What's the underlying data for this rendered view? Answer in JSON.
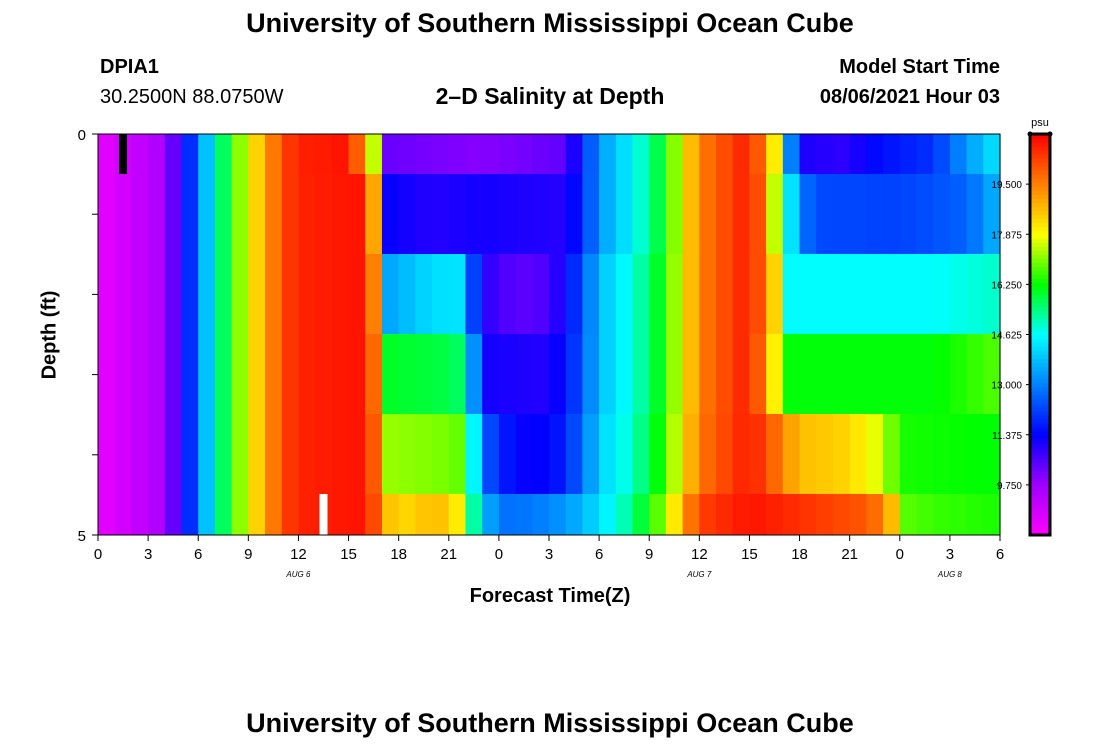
{
  "header": {
    "title": "University of Southern Mississippi Ocean Cube",
    "station_id": "DPIA1",
    "station_coords": "30.2500N  88.0750W",
    "plot_title": "2–D Salinity at Depth",
    "model_start_label": "Model Start Time",
    "model_start_value": "08/06/2021 Hour 03"
  },
  "footer": {
    "title": "University of Southern Mississippi Ocean Cube"
  },
  "chart_data": {
    "type": "heatmap",
    "title": "2–D Salinity at Depth",
    "xlabel": "Forecast Time(Z)",
    "ylabel": "Depth (ft)",
    "x_range_hours": [
      0,
      54
    ],
    "x_step_hours": 1,
    "y_range": [
      0,
      5
    ],
    "x_tick_labels": [
      "0",
      "3",
      "6",
      "9",
      "12",
      "15",
      "18",
      "21",
      "0",
      "3",
      "6",
      "9",
      "12",
      "15",
      "18",
      "21",
      "0",
      "3",
      "6"
    ],
    "y_tick_labels": [
      "0",
      "5"
    ],
    "day_labels": [
      {
        "label": "AUG 6",
        "hour": 12
      },
      {
        "label": "AUG 7",
        "hour": 36
      },
      {
        "label": "AUG 8",
        "hour": 51
      }
    ],
    "colorbar": {
      "units": "psu",
      "min": 8.125,
      "max": 21.125,
      "tick_labels": [
        "9.750",
        "11.375",
        "13.000",
        "14.625",
        "16.250",
        "17.875",
        "19.500"
      ],
      "tick_values": [
        9.75,
        11.375,
        13.0,
        14.625,
        16.25,
        17.875,
        19.5
      ]
    },
    "depth_layers": [
      "0-0.5 ft",
      "0.5-1.5 ft",
      "1.5-2.5 ft",
      "2.5-3.5 ft",
      "3.5-4.5 ft",
      "4.5-5 ft"
    ],
    "key_points": [
      [
        [
          0,
          8.5
        ],
        [
          4,
          9.6
        ],
        [
          5,
          11.1
        ],
        [
          6,
          12.8
        ],
        [
          7,
          14.9
        ],
        [
          8,
          16.4
        ],
        [
          9,
          17.9
        ],
        [
          10,
          19.0
        ],
        [
          11,
          20.2
        ],
        [
          12,
          20.7
        ],
        [
          15,
          20.9
        ],
        [
          16,
          19.0
        ],
        [
          17,
          16.0
        ],
        [
          17.5,
          10.3
        ],
        [
          23,
          10.0
        ],
        [
          28,
          10.4
        ],
        [
          29,
          11.8
        ],
        [
          30,
          13.3
        ],
        [
          32,
          14.5
        ],
        [
          34,
          16.2
        ],
        [
          35,
          18.0
        ],
        [
          36,
          19.5
        ],
        [
          39,
          20.8
        ],
        [
          40,
          19.2
        ],
        [
          41,
          17.0
        ],
        [
          41.5,
          13.0
        ],
        [
          42,
          11.1
        ],
        [
          45,
          10.9
        ],
        [
          46,
          11.4
        ],
        [
          50,
          12.0
        ],
        [
          52,
          13.3
        ],
        [
          54,
          14.4
        ]
      ],
      [
        [
          0,
          8.5
        ],
        [
          4,
          9.6
        ],
        [
          5,
          11.1
        ],
        [
          6,
          12.8
        ],
        [
          7,
          14.9
        ],
        [
          8,
          16.4
        ],
        [
          9,
          17.9
        ],
        [
          10,
          19.0
        ],
        [
          11,
          20.2
        ],
        [
          12,
          20.7
        ],
        [
          16,
          20.9
        ],
        [
          16.5,
          19.0
        ],
        [
          17,
          16.5
        ],
        [
          17.5,
          11.3
        ],
        [
          20,
          11.0
        ],
        [
          23,
          11.2
        ],
        [
          25,
          11.1
        ],
        [
          28,
          11.0
        ],
        [
          29,
          11.9
        ],
        [
          30,
          13.3
        ],
        [
          32,
          14.5
        ],
        [
          34,
          16.2
        ],
        [
          35,
          18.0
        ],
        [
          36,
          19.5
        ],
        [
          39,
          20.8
        ],
        [
          40,
          19.5
        ],
        [
          41,
          15.5
        ],
        [
          42,
          13.0
        ],
        [
          43,
          12.3
        ],
        [
          48,
          12.2
        ],
        [
          52,
          12.6
        ],
        [
          54,
          13.8
        ]
      ],
      [
        [
          0,
          8.5
        ],
        [
          4,
          9.6
        ],
        [
          5,
          11.1
        ],
        [
          6,
          12.8
        ],
        [
          7,
          14.9
        ],
        [
          8,
          16.4
        ],
        [
          9,
          17.9
        ],
        [
          10,
          19.0
        ],
        [
          11,
          20.2
        ],
        [
          12,
          20.7
        ],
        [
          16,
          20.9
        ],
        [
          16.5,
          19.5
        ],
        [
          17,
          17.2
        ],
        [
          17.5,
          13.5
        ],
        [
          20,
          14.2
        ],
        [
          22,
          14.3
        ],
        [
          22.5,
          12.2
        ],
        [
          23,
          11.0
        ],
        [
          25,
          10.4
        ],
        [
          27,
          10.6
        ],
        [
          28,
          11.4
        ],
        [
          29,
          12.4
        ],
        [
          30,
          13.8
        ],
        [
          32,
          14.8
        ],
        [
          34,
          16.4
        ],
        [
          35,
          18.0
        ],
        [
          36,
          19.5
        ],
        [
          39,
          20.8
        ],
        [
          40,
          19.5
        ],
        [
          41,
          17.4
        ],
        [
          41.5,
          14.6
        ],
        [
          45,
          14.6
        ],
        [
          50,
          14.6
        ],
        [
          54,
          15.0
        ]
      ],
      [
        [
          0,
          8.5
        ],
        [
          4,
          9.6
        ],
        [
          5,
          11.1
        ],
        [
          6,
          12.8
        ],
        [
          7,
          14.9
        ],
        [
          8,
          16.4
        ],
        [
          9,
          17.9
        ],
        [
          10,
          19.0
        ],
        [
          11,
          20.2
        ],
        [
          12,
          20.7
        ],
        [
          16,
          20.9
        ],
        [
          16.5,
          19.8
        ],
        [
          17,
          18.0
        ],
        [
          17.5,
          16.0
        ],
        [
          21,
          15.8
        ],
        [
          22,
          15.5
        ],
        [
          22.5,
          13.2
        ],
        [
          23,
          11.2
        ],
        [
          27,
          11.0
        ],
        [
          28,
          11.6
        ],
        [
          29,
          12.5
        ],
        [
          30,
          13.8
        ],
        [
          32,
          14.8
        ],
        [
          34,
          16.4
        ],
        [
          35,
          18.0
        ],
        [
          36,
          19.5
        ],
        [
          39,
          20.8
        ],
        [
          40,
          19.2
        ],
        [
          41,
          16.9
        ],
        [
          41.5,
          16.2
        ],
        [
          50,
          16.2
        ],
        [
          54,
          16.8
        ]
      ],
      [
        [
          0,
          8.5
        ],
        [
          4,
          9.6
        ],
        [
          5,
          11.1
        ],
        [
          6,
          12.8
        ],
        [
          7,
          14.9
        ],
        [
          8,
          16.4
        ],
        [
          9,
          17.9
        ],
        [
          10,
          19.0
        ],
        [
          11,
          20.2
        ],
        [
          12,
          20.7
        ],
        [
          16,
          20.9
        ],
        [
          16.5,
          20.0
        ],
        [
          17,
          18.6
        ],
        [
          17.5,
          17.2
        ],
        [
          21,
          17.0
        ],
        [
          22,
          16.8
        ],
        [
          22.5,
          14.5
        ],
        [
          23,
          12.6
        ],
        [
          25,
          11.3
        ],
        [
          27,
          11.4
        ],
        [
          28,
          11.8
        ],
        [
          29,
          12.8
        ],
        [
          30,
          14.0
        ],
        [
          32,
          15.0
        ],
        [
          34,
          16.6
        ],
        [
          35,
          18.2
        ],
        [
          36,
          19.6
        ],
        [
          39,
          20.8
        ],
        [
          40,
          20.2
        ],
        [
          41,
          19.4
        ],
        [
          42,
          18.7
        ],
        [
          45,
          18.4
        ],
        [
          47,
          17.5
        ],
        [
          48,
          16.4
        ],
        [
          54,
          16.2
        ]
      ],
      [
        [
          0,
          8.5
        ],
        [
          4,
          9.6
        ],
        [
          5,
          11.1
        ],
        [
          6,
          12.8
        ],
        [
          7,
          14.9
        ],
        [
          8,
          16.4
        ],
        [
          9,
          17.9
        ],
        [
          10,
          19.0
        ],
        [
          11,
          20.2
        ],
        [
          12,
          20.7
        ],
        [
          16,
          20.9
        ],
        [
          16.5,
          20.2
        ],
        [
          17,
          19.6
        ],
        [
          17.5,
          18.6
        ],
        [
          19,
          18.3
        ],
        [
          20,
          18.9
        ],
        [
          21,
          18.4
        ],
        [
          22,
          17.8
        ],
        [
          22.5,
          15.2
        ],
        [
          23,
          14.0
        ],
        [
          24,
          12.8
        ],
        [
          26,
          12.9
        ],
        [
          28,
          13.3
        ],
        [
          30,
          14.2
        ],
        [
          32,
          15.4
        ],
        [
          34,
          17.3
        ],
        [
          35,
          19.0
        ],
        [
          36,
          20.3
        ],
        [
          39,
          20.9
        ],
        [
          43,
          20.4
        ],
        [
          46,
          20.0
        ],
        [
          47,
          19.5
        ],
        [
          48,
          18.0
        ],
        [
          48.5,
          16.8
        ],
        [
          50,
          16.6
        ],
        [
          54,
          16.4
        ]
      ]
    ],
    "markers": [
      {
        "name": "surface-marker",
        "hour": 1.5,
        "layer": 0,
        "color": "#000000"
      },
      {
        "name": "bottom-marker",
        "hour": 13.5,
        "layer": 5,
        "color": "#ffffff"
      }
    ],
    "colormap_stops": [
      {
        "value": 8.125,
        "color": "#ff00ff"
      },
      {
        "value": 9.75,
        "color": "#a000ff"
      },
      {
        "value": 11.375,
        "color": "#0000ff"
      },
      {
        "value": 13.0,
        "color": "#0080ff"
      },
      {
        "value": 14.625,
        "color": "#00ffff"
      },
      {
        "value": 16.25,
        "color": "#00ff00"
      },
      {
        "value": 17.875,
        "color": "#ffff00"
      },
      {
        "value": 19.5,
        "color": "#ff8000"
      },
      {
        "value": 21.125,
        "color": "#ff0000"
      }
    ]
  }
}
